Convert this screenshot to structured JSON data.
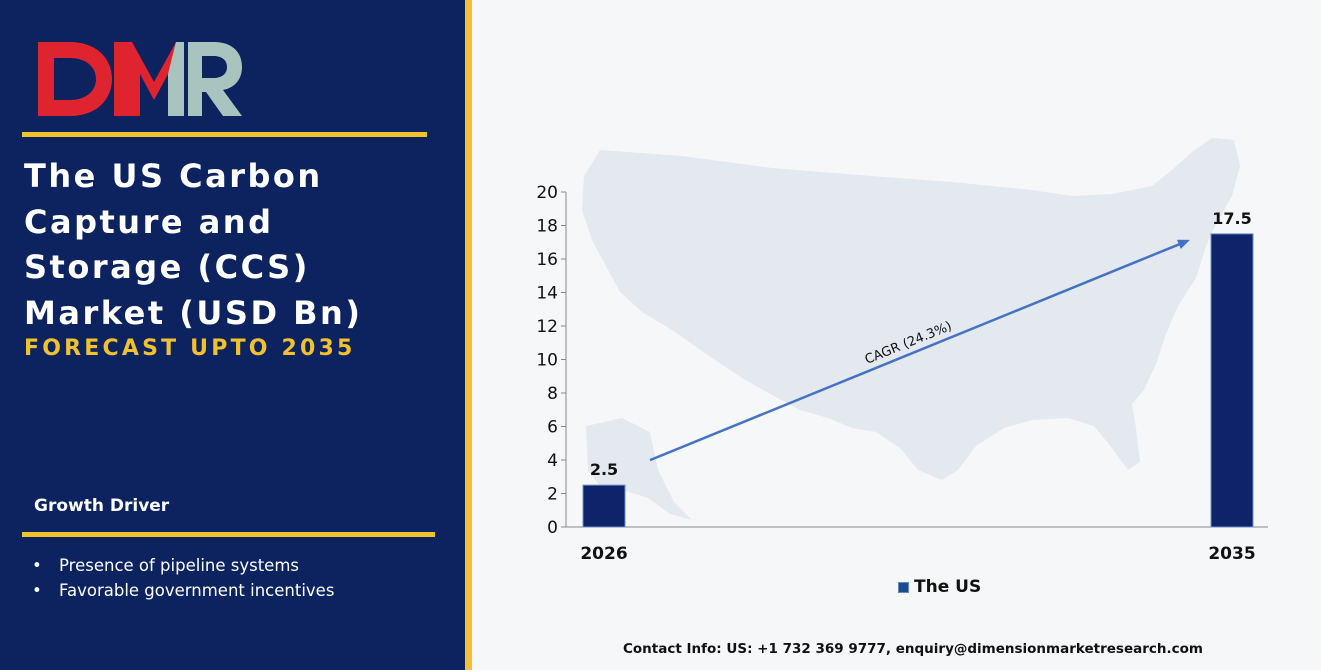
{
  "brand": {
    "logo_text": "DMR",
    "logo_colors": [
      "#e0242f",
      "#a9c4be"
    ]
  },
  "left_panel": {
    "title": "The US Carbon Capture and Storage (CCS) Market (USD Bn)",
    "subtitle": "FORECAST UPTO 2035",
    "growth_driver": {
      "heading": "Growth Driver",
      "items": [
        "Presence of pipeline systems",
        "Favorable government incentives"
      ]
    }
  },
  "colors": {
    "panel": "#0c2360",
    "accent": "#f2c12e",
    "bar": "#0f236b",
    "trend": "#4472c4"
  },
  "chart_data": {
    "type": "bar",
    "categories": [
      "2026",
      "2035"
    ],
    "series": [
      {
        "name": "The US",
        "values": [
          2.5,
          17.5
        ]
      }
    ],
    "data_labels": [
      "2.5",
      "17.5"
    ],
    "ylim": [
      0,
      20
    ],
    "yticks": [
      0,
      2,
      4,
      6,
      8,
      10,
      12,
      14,
      16,
      18,
      20
    ],
    "annotation": "CAGR (24.3%)",
    "legend": "bottom",
    "grid": false,
    "background": "united-states-map"
  },
  "footer": {
    "contact": "Contact Info: US: +1 732 369 9777, enquiry@dimensionmarketresearch.com"
  }
}
